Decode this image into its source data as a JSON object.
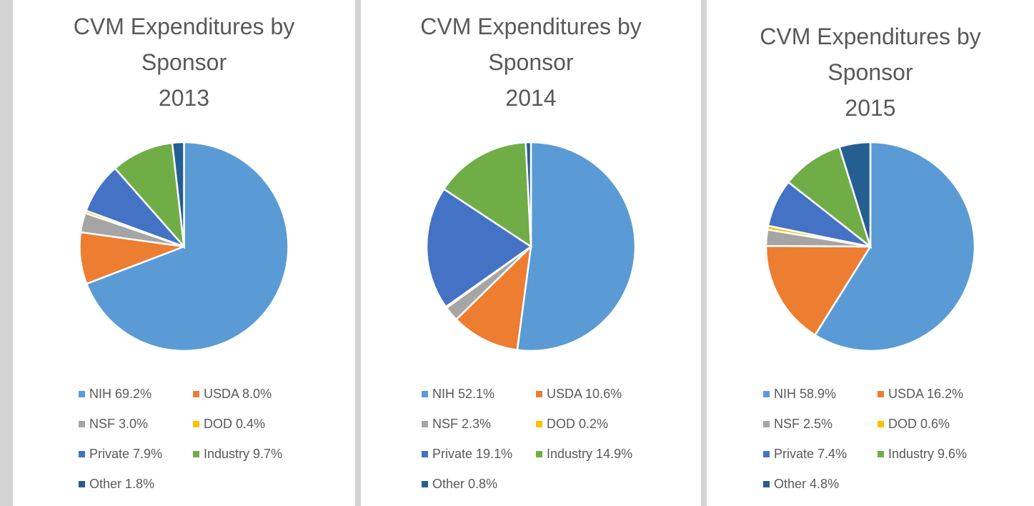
{
  "chart_data": [
    {
      "type": "pie",
      "title": "CVM Expenditures by Sponsor",
      "subtitle": "2013",
      "categories": [
        "NIH",
        "USDA",
        "NSF",
        "DOD",
        "Private",
        "Industry",
        "Other"
      ],
      "values": [
        69.2,
        8.0,
        3.0,
        0.4,
        7.9,
        9.7,
        1.8
      ],
      "value_labels": [
        "69.2%",
        "8.0%",
        "3.0%",
        "0.4%",
        "7.9%",
        "9.7%",
        "1.8%"
      ],
      "colors": [
        "#5b9bd5",
        "#ed7d31",
        "#a5a5a5",
        "#ffc000",
        "#4472c4",
        "#70ad47",
        "#255e91"
      ]
    },
    {
      "type": "pie",
      "title": "CVM Expenditures by Sponsor",
      "subtitle": "2014",
      "categories": [
        "NIH",
        "USDA",
        "NSF",
        "DOD",
        "Private",
        "Industry",
        "Other"
      ],
      "values": [
        52.1,
        10.6,
        2.3,
        0.2,
        19.1,
        14.9,
        0.8
      ],
      "value_labels": [
        "52.1%",
        "10.6%",
        "2.3%",
        "0.2%",
        "19.1%",
        "14.9%",
        "0.8%"
      ],
      "colors": [
        "#5b9bd5",
        "#ed7d31",
        "#a5a5a5",
        "#ffc000",
        "#4472c4",
        "#70ad47",
        "#255e91"
      ]
    },
    {
      "type": "pie",
      "title": "CVM Expenditures by Sponsor",
      "subtitle": "2015",
      "categories": [
        "NIH",
        "USDA",
        "NSF",
        "DOD",
        "Private",
        "Industry",
        "Other"
      ],
      "values": [
        58.9,
        16.2,
        2.5,
        0.6,
        7.4,
        9.6,
        4.8
      ],
      "value_labels": [
        "58.9%",
        "16.2%",
        "2.5%",
        "0.6%",
        "7.4%",
        "9.6%",
        "4.8%"
      ],
      "colors": [
        "#5b9bd5",
        "#ed7d31",
        "#a5a5a5",
        "#ffc000",
        "#4472c4",
        "#70ad47",
        "#255e91"
      ]
    }
  ]
}
